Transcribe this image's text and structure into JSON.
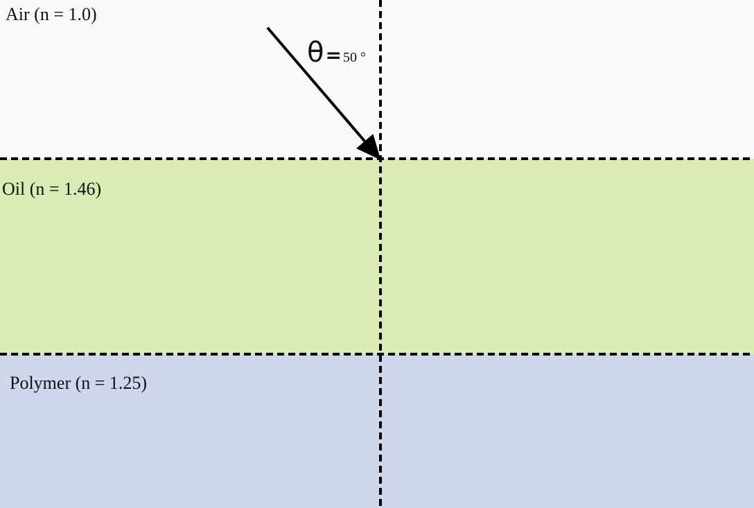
{
  "layers": {
    "air": {
      "label": "Air (n = 1.0)",
      "color": "#f9f9f9"
    },
    "oil": {
      "label": "Oil (n = 1.46)",
      "color": "#dcebb4"
    },
    "polymer": {
      "label": "Polymer (n = 1.25)",
      "color": "#cfd5eb"
    }
  },
  "incident_ray": {
    "symbol": "θ",
    "equals": "=",
    "angle_text": "50 °",
    "color": "#000000"
  },
  "line_color": "#000000"
}
